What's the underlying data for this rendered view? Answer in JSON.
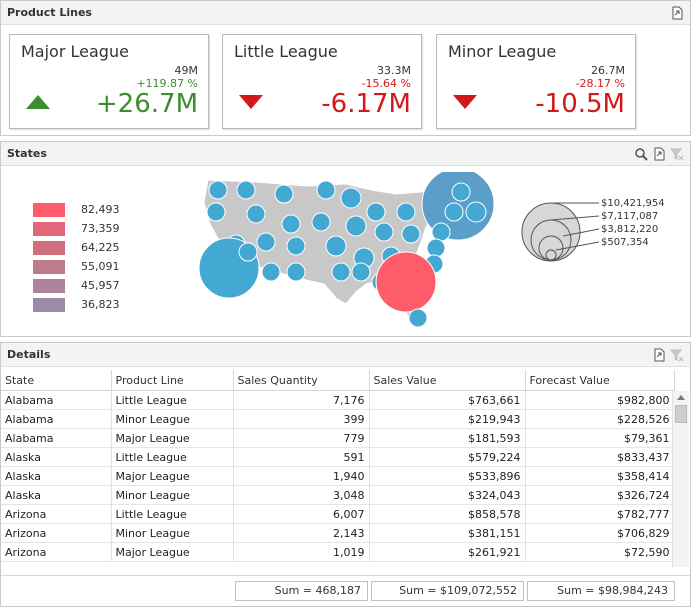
{
  "product_lines": {
    "title": "Product Lines",
    "cards": [
      {
        "title": "Major League",
        "target": "49M",
        "delta": "+119.87 %",
        "value": "+26.7M",
        "trend": "up"
      },
      {
        "title": "Little League",
        "target": "33.3M",
        "delta": "-15.64 %",
        "value": "-6.17M",
        "trend": "down"
      },
      {
        "title": "Minor League",
        "target": "26.7M",
        "delta": "-28.17 %",
        "value": "-10.5M",
        "trend": "down"
      }
    ]
  },
  "states": {
    "title": "States",
    "color_legend": [
      {
        "label": "82,493",
        "color": "#ff5c6b"
      },
      {
        "label": "73,359",
        "color": "#e4667a"
      },
      {
        "label": "64,225",
        "color": "#d0707f"
      },
      {
        "label": "55,091",
        "color": "#c07a8e"
      },
      {
        "label": "45,957",
        "color": "#ae8299"
      },
      {
        "label": "36,823",
        "color": "#9a8ba6"
      }
    ],
    "size_legend": [
      "$10,421,954",
      "$7,117,087",
      "$3,812,220",
      "$507,354"
    ],
    "bubble_color": "#43a8d2",
    "map_color": "#c8c8c8"
  },
  "details": {
    "title": "Details",
    "columns": [
      "State",
      "Product Line",
      "Sales Quantity",
      "Sales Value",
      "Forecast Value"
    ],
    "rows": [
      [
        "Alabama",
        "Little League",
        "7,176",
        "$763,661",
        "$982,800"
      ],
      [
        "Alabama",
        "Minor League",
        "399",
        "$219,943",
        "$228,526"
      ],
      [
        "Alabama",
        "Major League",
        "779",
        "$181,593",
        "$79,361"
      ],
      [
        "Alaska",
        "Little League",
        "591",
        "$579,224",
        "$833,437"
      ],
      [
        "Alaska",
        "Major League",
        "1,940",
        "$533,896",
        "$358,414"
      ],
      [
        "Alaska",
        "Minor League",
        "3,048",
        "$324,043",
        "$326,724"
      ],
      [
        "Arizona",
        "Little League",
        "6,007",
        "$858,578",
        "$782,777"
      ],
      [
        "Arizona",
        "Minor League",
        "2,143",
        "$381,151",
        "$706,829"
      ],
      [
        "Arizona",
        "Major League",
        "1,019",
        "$261,921",
        "$72,590"
      ]
    ],
    "totals": [
      "Sum = 468,187",
      "Sum = $109,072,552",
      "Sum = $98,984,243"
    ]
  },
  "colors": {
    "up": "#3c8d2f",
    "down": "#d21919"
  }
}
